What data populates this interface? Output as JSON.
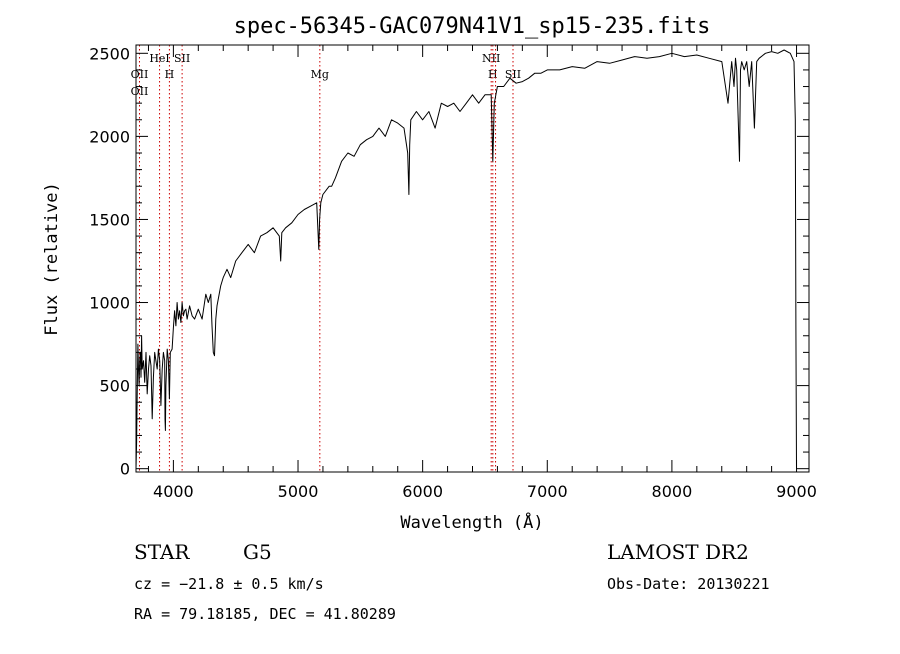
{
  "chart_data": {
    "type": "line",
    "title": "spec-56345-GAC079N41V1_sp15-235.fits",
    "xlabel": "Wavelength (Å)",
    "ylabel": "Flux (relative)",
    "xlim": [
      3700,
      9100
    ],
    "ylim": [
      -20,
      2550
    ],
    "xticks": [
      {
        "value": 4000,
        "label": "4000"
      },
      {
        "value": 5000,
        "label": "5000"
      },
      {
        "value": 6000,
        "label": "6000"
      },
      {
        "value": 7000,
        "label": "7000"
      },
      {
        "value": 8000,
        "label": "8000"
      },
      {
        "value": 9000,
        "label": "9000"
      }
    ],
    "yticks": [
      {
        "value": 0,
        "label": "0"
      },
      {
        "value": 500,
        "label": "500"
      },
      {
        "value": 1000,
        "label": "1000"
      },
      {
        "value": 1500,
        "label": "1500"
      },
      {
        "value": 2000,
        "label": "2000"
      },
      {
        "value": 2500,
        "label": "2500"
      }
    ],
    "grid": false,
    "line_color": "#000000",
    "marker_color": "#cc0000",
    "series": [
      {
        "x": [
          3700,
          3705,
          3710,
          3715,
          3720,
          3725,
          3730,
          3735,
          3740,
          3745,
          3750,
          3760,
          3770,
          3780,
          3790,
          3800,
          3810,
          3820,
          3830,
          3840,
          3850,
          3860,
          3870,
          3880,
          3890,
          3900,
          3910,
          3920,
          3930,
          3933,
          3936,
          3940,
          3950,
          3960,
          3968,
          3975,
          3990,
          4000,
          4005,
          4010,
          4020,
          4030,
          4040,
          4050,
          4060,
          4070,
          4080,
          4090,
          4100,
          4110,
          4130,
          4150,
          4170,
          4200,
          4230,
          4260,
          4280,
          4300,
          4310,
          4320,
          4330,
          4340,
          4350,
          4380,
          4400,
          4430,
          4460,
          4500,
          4550,
          4600,
          4650,
          4700,
          4750,
          4800,
          4850,
          4861,
          4870,
          4900,
          4950,
          5000,
          5050,
          5100,
          5150,
          5167,
          5173,
          5183,
          5200,
          5250,
          5270,
          5300,
          5350,
          5400,
          5450,
          5500,
          5550,
          5600,
          5650,
          5700,
          5750,
          5800,
          5850,
          5880,
          5890,
          5896,
          5905,
          5950,
          6000,
          6050,
          6100,
          6150,
          6200,
          6250,
          6300,
          6350,
          6400,
          6450,
          6500,
          6550,
          6563,
          6575,
          6600,
          6650,
          6700,
          6750,
          6800,
          6850,
          6900,
          6950,
          7000,
          7100,
          7200,
          7300,
          7400,
          7500,
          7600,
          7700,
          7800,
          7900,
          8000,
          8100,
          8200,
          8300,
          8400,
          8450,
          8480,
          8498,
          8510,
          8520,
          8542,
          8550,
          8560,
          8580,
          8600,
          8620,
          8640,
          8662,
          8680,
          8700,
          8750,
          8800,
          8850,
          8900,
          8950,
          8980,
          8990,
          8995,
          9000
        ],
        "y": [
          0,
          150,
          450,
          750,
          600,
          500,
          650,
          700,
          550,
          800,
          600,
          650,
          520,
          700,
          450,
          600,
          680,
          620,
          300,
          550,
          700,
          650,
          600,
          720,
          650,
          380,
          600,
          700,
          650,
          300,
          230,
          500,
          720,
          650,
          420,
          700,
          720,
          850,
          900,
          950,
          860,
          1000,
          900,
          950,
          880,
          1000,
          920,
          950,
          960,
          900,
          980,
          920,
          900,
          960,
          900,
          1050,
          1000,
          1050,
          860,
          700,
          680,
          900,
          980,
          1100,
          1150,
          1200,
          1150,
          1250,
          1300,
          1350,
          1300,
          1400,
          1420,
          1450,
          1400,
          1250,
          1420,
          1450,
          1480,
          1530,
          1560,
          1580,
          1600,
          1320,
          1500,
          1600,
          1650,
          1700,
          1700,
          1750,
          1850,
          1900,
          1880,
          1950,
          1980,
          2000,
          2050,
          2000,
          2100,
          2080,
          2050,
          1900,
          1650,
          1950,
          2100,
          2150,
          2100,
          2150,
          2050,
          2200,
          2180,
          2200,
          2150,
          2200,
          2250,
          2200,
          2250,
          2250,
          1850,
          2200,
          2300,
          2300,
          2350,
          2320,
          2330,
          2350,
          2380,
          2380,
          2400,
          2400,
          2420,
          2410,
          2450,
          2440,
          2460,
          2480,
          2470,
          2480,
          2500,
          2480,
          2490,
          2470,
          2450,
          2200,
          2450,
          2300,
          2470,
          2400,
          1850,
          2400,
          2450,
          2400,
          2450,
          2300,
          2450,
          2050,
          2450,
          2470,
          2500,
          2510,
          2500,
          2520,
          2500,
          2450,
          2100,
          850,
          0
        ]
      }
    ],
    "lines": [
      {
        "x": 3728,
        "labels": [
          "OII",
          "OII"
        ]
      },
      {
        "x": 3889,
        "labels": [
          "HeI"
        ]
      },
      {
        "x": 3968,
        "labels": [
          "H"
        ]
      },
      {
        "x": 4070,
        "labels": [
          "SII"
        ]
      },
      {
        "x": 5175,
        "labels": [
          "Mg"
        ]
      },
      {
        "x": 6550,
        "labels": [
          "NII"
        ]
      },
      {
        "x": 6563,
        "labels": [
          "H"
        ]
      },
      {
        "x": 6585,
        "labels": [
          ""
        ]
      },
      {
        "x": 6725,
        "labels": [
          "SII"
        ]
      }
    ]
  },
  "info": {
    "object_class": "STAR",
    "subclass": "G5",
    "survey": "LAMOST DR2",
    "redshift": "cz = −21.8 ± 0.5 km/s",
    "obs_date": "Obs-Date: 20130221",
    "coords": "RA =  79.18185, DEC =  41.80289"
  }
}
